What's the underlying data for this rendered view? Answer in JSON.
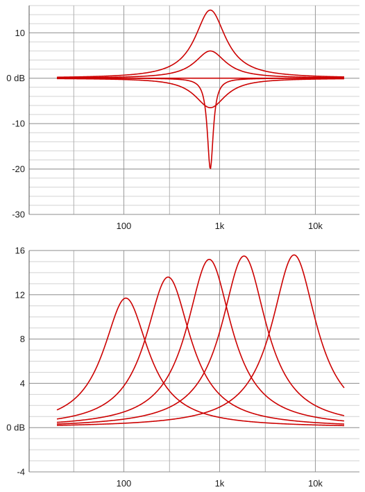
{
  "chart_data": [
    {
      "type": "line",
      "title": "",
      "xlabel": "",
      "ylabel": "",
      "x_scale": "log",
      "x_range_hz": [
        20,
        20000
      ],
      "ylim": [
        -30,
        16
      ],
      "y_major_ticks": [
        10,
        0,
        -10,
        -20,
        -30
      ],
      "y_tick_labels": [
        "10",
        "0 dB",
        "-10",
        "-20",
        "-30"
      ],
      "x_major_ticks": [
        100,
        1000,
        10000
      ],
      "x_tick_labels": [
        "100",
        "1k",
        "10k"
      ],
      "grid": true,
      "line_color": "#cc0000",
      "series": [
        {
          "type": "bell",
          "freq": 800,
          "gain": 15,
          "width_oct": 1.3
        },
        {
          "type": "bell",
          "freq": 800,
          "gain": 6,
          "width_oct": 1.3
        },
        {
          "type": "flat",
          "gain": 0
        },
        {
          "type": "bell",
          "freq": 800,
          "gain": -6.5,
          "width_oct": 1.3
        },
        {
          "type": "bell",
          "freq": 800,
          "gain": -20,
          "width_oct": 0.25
        }
      ]
    },
    {
      "type": "line",
      "title": "",
      "xlabel": "",
      "ylabel": "",
      "x_scale": "log",
      "x_range_hz": [
        20,
        20000
      ],
      "ylim": [
        -4,
        16
      ],
      "y_major_ticks": [
        16,
        12,
        8,
        4,
        0,
        -4
      ],
      "y_tick_labels": [
        "16",
        "12",
        "8",
        "4",
        "0 dB",
        "-4"
      ],
      "x_major_ticks": [
        100,
        1000,
        10000
      ],
      "x_tick_labels": [
        "100",
        "1k",
        "10k"
      ],
      "grid": true,
      "line_color": "#cc0000",
      "series": [
        {
          "type": "bell",
          "freq": 105,
          "gain": 11.7,
          "width_oct": 1.9
        },
        {
          "type": "bell",
          "freq": 290,
          "gain": 13.6,
          "width_oct": 1.9
        },
        {
          "type": "bell",
          "freq": 780,
          "gain": 15.2,
          "width_oct": 1.9
        },
        {
          "type": "bell",
          "freq": 1800,
          "gain": 15.5,
          "width_oct": 1.9
        },
        {
          "type": "bell",
          "freq": 6000,
          "gain": 15.6,
          "width_oct": 1.9
        }
      ]
    }
  ]
}
